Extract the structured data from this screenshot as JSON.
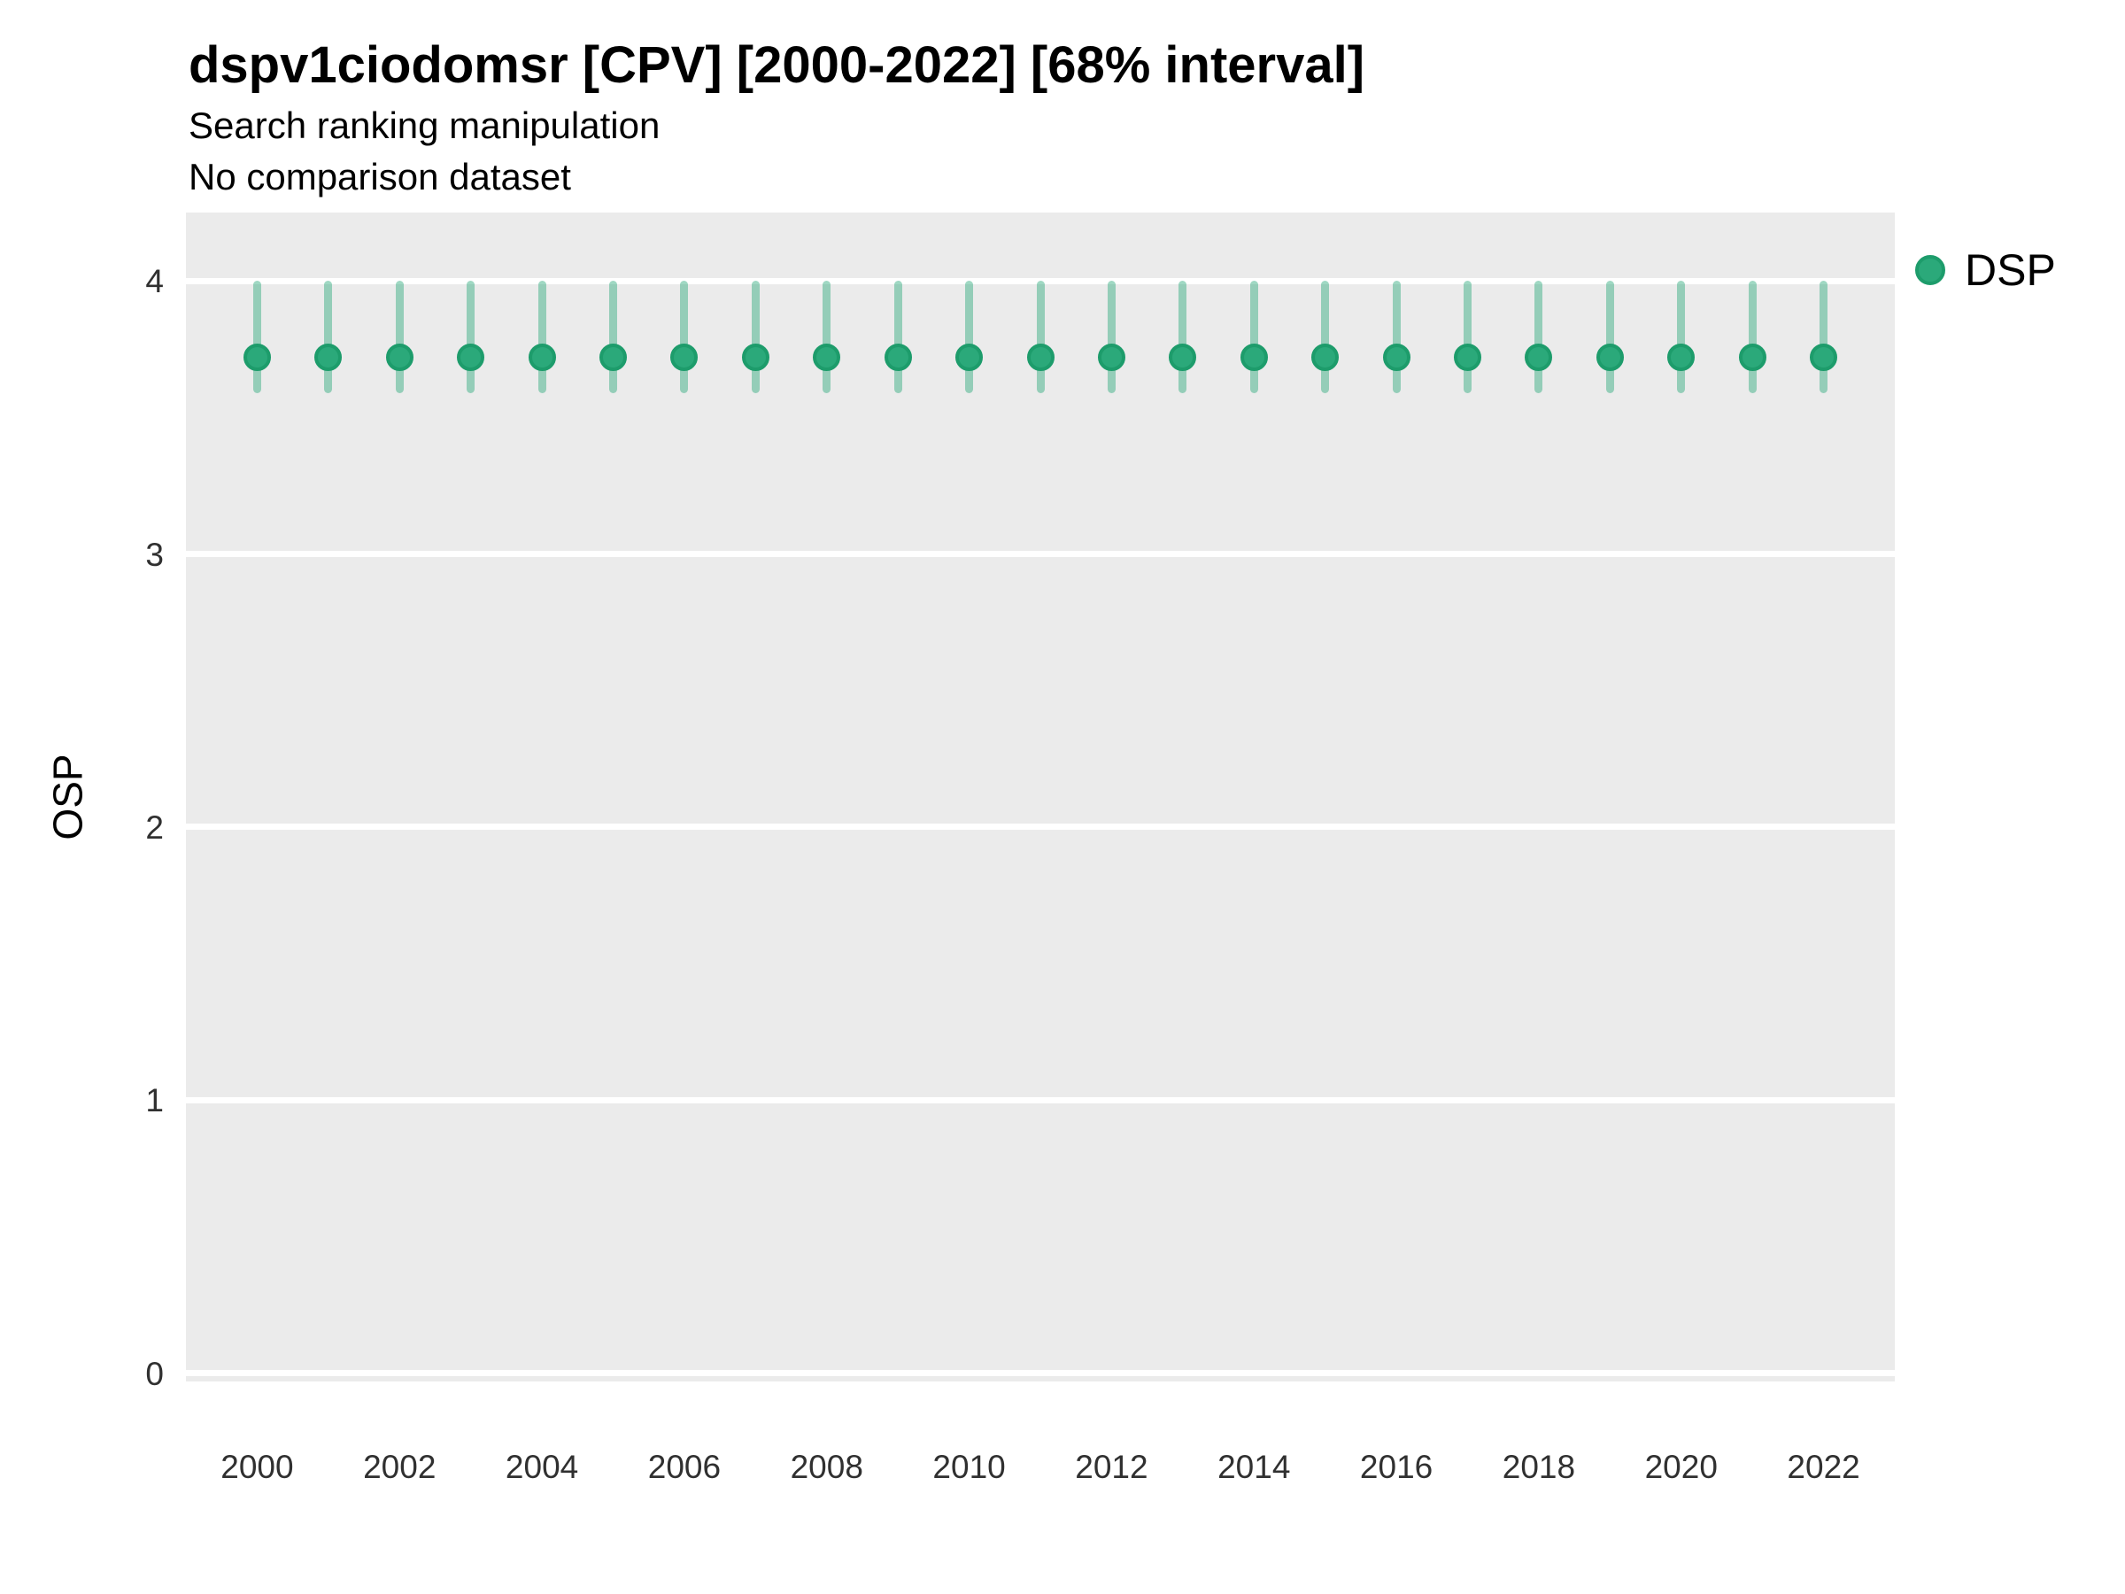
{
  "header": {
    "title": "dspv1ciodomsr [CPV] [2000-2022] [68% interval]",
    "subtitle1": "Search ranking manipulation",
    "subtitle2": "No comparison dataset"
  },
  "legend": {
    "position": "right",
    "items": [
      {
        "label": "DSP",
        "color": "#2ba97a",
        "stroke": "#1d9c6b"
      }
    ]
  },
  "chart_data": {
    "type": "scatter",
    "variant": "pointrange",
    "title": "dspv1ciodomsr [CPV] [2000-2022] [68% interval]",
    "subtitle": [
      "Search ranking manipulation",
      "No comparison dataset"
    ],
    "interval_note": "68% interval",
    "xlabel": "",
    "ylabel": "OSP",
    "xlim": [
      1999,
      2023
    ],
    "ylim": [
      -0.03,
      4.25
    ],
    "xticks": [
      2000,
      2002,
      2004,
      2006,
      2008,
      2010,
      2012,
      2014,
      2016,
      2018,
      2020,
      2022
    ],
    "yticks": [
      0,
      1,
      2,
      3,
      4
    ],
    "grid": "major-horizontal-white-on-grey",
    "panel_bg": "#ebebeb",
    "gridline_color": "#ffffff",
    "legend_position": "right",
    "series": [
      {
        "name": "DSP",
        "color": "#2ba97a",
        "stroke": "#1d9c6b",
        "interval_color": "rgba(43,169,122,0.45)",
        "x": [
          2000,
          2001,
          2002,
          2003,
          2004,
          2005,
          2006,
          2007,
          2008,
          2009,
          2010,
          2011,
          2012,
          2013,
          2014,
          2015,
          2016,
          2017,
          2018,
          2019,
          2020,
          2021,
          2022
        ],
        "y": [
          3.72,
          3.72,
          3.72,
          3.72,
          3.72,
          3.72,
          3.72,
          3.72,
          3.72,
          3.72,
          3.72,
          3.72,
          3.72,
          3.72,
          3.72,
          3.72,
          3.72,
          3.72,
          3.72,
          3.72,
          3.72,
          3.72,
          3.72
        ],
        "y_lo": [
          3.59,
          3.59,
          3.59,
          3.59,
          3.59,
          3.59,
          3.59,
          3.59,
          3.59,
          3.59,
          3.59,
          3.59,
          3.59,
          3.59,
          3.59,
          3.59,
          3.59,
          3.59,
          3.59,
          3.59,
          3.59,
          3.59,
          3.59
        ],
        "y_hi": [
          4.0,
          4.0,
          4.0,
          4.0,
          4.0,
          4.0,
          4.0,
          4.0,
          4.0,
          4.0,
          4.0,
          4.0,
          4.0,
          4.0,
          4.0,
          4.0,
          4.0,
          4.0,
          4.0,
          4.0,
          4.0,
          4.0,
          4.0
        ]
      }
    ]
  }
}
